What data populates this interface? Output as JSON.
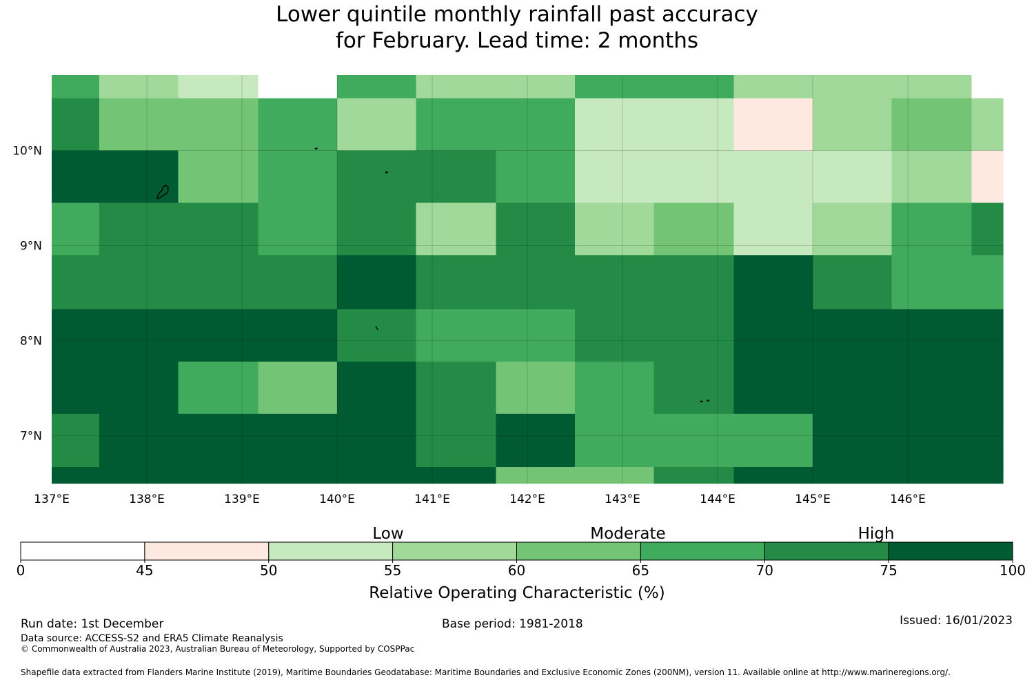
{
  "title": {
    "line1": "Lower quintile monthly rainfall past accuracy",
    "line2": "for February. Lead time: 2 months"
  },
  "map": {
    "lon_ticks": [
      "137°E",
      "138°E",
      "139°E",
      "140°E",
      "141°E",
      "142°E",
      "143°E",
      "144°E",
      "145°E",
      "146°E"
    ],
    "lat_ticks": [
      "10°N",
      "9°N",
      "8°N",
      "7°N"
    ],
    "lon_range": [
      137,
      147
    ],
    "lat_range": [
      6.5,
      10.8
    ],
    "class_colors": [
      "#ffffff",
      "#fee9e0",
      "#c7e9c0",
      "#a1d99b",
      "#74c476",
      "#41ab5d",
      "#238b45",
      "#005a32"
    ],
    "rows": [
      {
        "lat_top": 10.8,
        "lat_bottom": 10.55,
        "cells": [
          [
            137.0,
            137.5,
            5
          ],
          [
            137.5,
            138.33,
            3
          ],
          [
            138.33,
            139.17,
            2
          ],
          [
            139.17,
            140.0,
            0
          ],
          [
            140.0,
            140.83,
            5
          ],
          [
            140.83,
            142.5,
            3
          ],
          [
            142.5,
            144.17,
            5
          ],
          [
            144.17,
            146.67,
            3
          ],
          [
            146.67,
            147.0,
            0
          ]
        ]
      },
      {
        "lat_top": 10.55,
        "lat_bottom": 10.0,
        "cells": [
          [
            137.0,
            137.5,
            6
          ],
          [
            137.5,
            139.17,
            4
          ],
          [
            139.17,
            140.0,
            5
          ],
          [
            140.0,
            140.83,
            3
          ],
          [
            140.83,
            142.5,
            5
          ],
          [
            142.5,
            144.17,
            2
          ],
          [
            144.17,
            145.0,
            1
          ],
          [
            145.0,
            145.83,
            3
          ],
          [
            145.83,
            146.67,
            4
          ],
          [
            146.67,
            147.0,
            3
          ]
        ]
      },
      {
        "lat_top": 10.0,
        "lat_bottom": 9.45,
        "cells": [
          [
            137.0,
            138.33,
            7
          ],
          [
            138.33,
            139.17,
            4
          ],
          [
            139.17,
            140.0,
            5
          ],
          [
            140.0,
            141.67,
            6
          ],
          [
            141.67,
            142.5,
            5
          ],
          [
            142.5,
            145.83,
            2
          ],
          [
            145.83,
            146.67,
            3
          ],
          [
            146.67,
            147.0,
            1
          ]
        ]
      },
      {
        "lat_top": 9.45,
        "lat_bottom": 8.9,
        "cells": [
          [
            137.0,
            137.5,
            5
          ],
          [
            137.5,
            139.17,
            6
          ],
          [
            139.17,
            140.0,
            5
          ],
          [
            140.0,
            140.83,
            6
          ],
          [
            140.83,
            141.67,
            3
          ],
          [
            141.67,
            142.5,
            6
          ],
          [
            142.5,
            143.33,
            3
          ],
          [
            143.33,
            144.17,
            4
          ],
          [
            144.17,
            145.0,
            2
          ],
          [
            145.0,
            145.83,
            3
          ],
          [
            145.83,
            146.67,
            5
          ],
          [
            146.67,
            147.0,
            6
          ]
        ]
      },
      {
        "lat_top": 8.9,
        "lat_bottom": 8.33,
        "cells": [
          [
            137.0,
            140.0,
            6
          ],
          [
            140.0,
            140.83,
            7
          ],
          [
            140.83,
            144.17,
            6
          ],
          [
            144.17,
            145.0,
            7
          ],
          [
            145.0,
            145.83,
            6
          ],
          [
            145.83,
            147.0,
            5
          ]
        ]
      },
      {
        "lat_top": 8.33,
        "lat_bottom": 7.78,
        "cells": [
          [
            137.0,
            140.0,
            7
          ],
          [
            140.0,
            140.83,
            6
          ],
          [
            140.83,
            142.5,
            5
          ],
          [
            142.5,
            144.17,
            6
          ],
          [
            144.17,
            147.0,
            7
          ]
        ]
      },
      {
        "lat_top": 7.78,
        "lat_bottom": 7.23,
        "cells": [
          [
            137.0,
            138.33,
            7
          ],
          [
            138.33,
            139.17,
            5
          ],
          [
            139.17,
            140.0,
            4
          ],
          [
            140.0,
            140.83,
            7
          ],
          [
            140.83,
            141.67,
            6
          ],
          [
            141.67,
            142.5,
            4
          ],
          [
            142.5,
            143.33,
            5
          ],
          [
            143.33,
            144.17,
            6
          ],
          [
            144.17,
            147.0,
            7
          ]
        ]
      },
      {
        "lat_top": 7.23,
        "lat_bottom": 6.67,
        "cells": [
          [
            137.0,
            137.5,
            6
          ],
          [
            137.5,
            140.83,
            7
          ],
          [
            140.83,
            141.67,
            6
          ],
          [
            141.67,
            142.5,
            7
          ],
          [
            142.5,
            145.0,
            5
          ],
          [
            145.0,
            147.0,
            7
          ]
        ]
      },
      {
        "lat_top": 6.67,
        "lat_bottom": 6.5,
        "cells": [
          [
            137.0,
            141.67,
            7
          ],
          [
            141.67,
            143.33,
            4
          ],
          [
            143.33,
            144.17,
            6
          ],
          [
            144.17,
            147.0,
            7
          ]
        ]
      }
    ],
    "islands": [
      {
        "lon": 138.15,
        "lat": 9.55,
        "kind": "large"
      },
      {
        "lon": 139.78,
        "lat": 10.02,
        "kind": "dot"
      },
      {
        "lon": 140.52,
        "lat": 9.77,
        "kind": "dot"
      },
      {
        "lon": 140.42,
        "lat": 8.13,
        "kind": "dash"
      },
      {
        "lon": 143.83,
        "lat": 7.36,
        "kind": "dot"
      },
      {
        "lon": 143.9,
        "lat": 7.37,
        "kind": "dot"
      }
    ]
  },
  "colorbar": {
    "ticks": [
      "0",
      "45",
      "50",
      "55",
      "60",
      "65",
      "70",
      "75",
      "100"
    ],
    "categories": [
      "Low",
      "Moderate",
      "High"
    ],
    "label": "Relative Operating Characteristic (%)"
  },
  "footer": {
    "run_date": "Run date: 1st December",
    "data_source": "Data source: ACCESS-S2 and ERA5 Climate Reanalysis",
    "copyright": "© Commonwealth of Australia 2023, Australian Bureau of Meteorology, Supported by COSPPac",
    "base_period": "Base period: 1981-2018",
    "issued": "Issued: 16/01/2023",
    "shapefile": "Shapefile data extracted from Flanders Marine Institute (2019), Maritime Boundaries Geodatabase: Maritime Boundaries and Exclusive Economic Zones (200NM), version 11. Available online at http://www.marineregions.org/."
  }
}
